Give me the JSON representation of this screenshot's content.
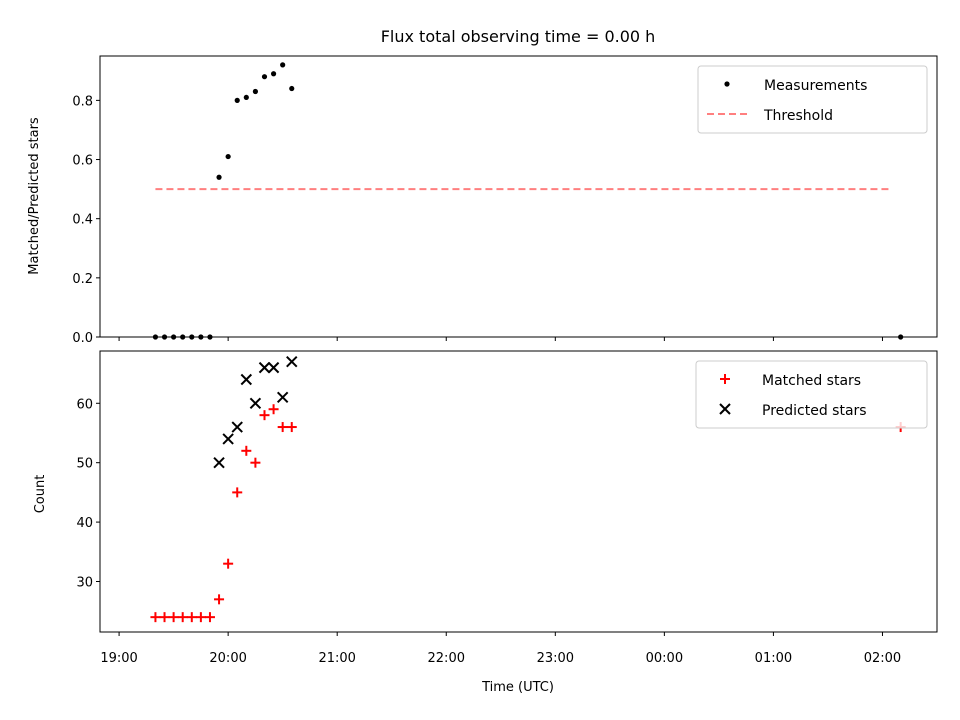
{
  "title": "Flux total observing time = 0.00 h",
  "colors": {
    "measurement": "#000000",
    "threshold": "#ff7f7f",
    "matched": "#ff0000",
    "predicted": "#000000"
  },
  "chart_data": [
    {
      "type": "scatter",
      "ylabel": "Matched/Predicted stars",
      "ylim": [
        0.0,
        0.95
      ],
      "yticks": [
        0.0,
        0.2,
        0.4,
        0.6,
        0.8
      ],
      "ytick_labels": [
        "0.0",
        "0.2",
        "0.4",
        "0.6",
        "0.8"
      ],
      "legend_position": "top-right",
      "series": [
        {
          "name": "Measurements",
          "kind": "dot",
          "x": [
            "19:20",
            "19:25",
            "19:30",
            "19:35",
            "19:40",
            "19:45",
            "19:50",
            "19:55",
            "20:00",
            "20:05",
            "20:10",
            "20:15",
            "20:20",
            "20:25",
            "20:30",
            "20:35",
            "02:10"
          ],
          "y": [
            0.0,
            0.0,
            0.0,
            0.0,
            0.0,
            0.0,
            0.0,
            0.54,
            0.61,
            0.8,
            0.81,
            0.83,
            0.88,
            0.89,
            0.92,
            0.84,
            0.0
          ]
        },
        {
          "name": "Threshold",
          "kind": "dashed-line",
          "x": [
            "19:20",
            "02:05"
          ],
          "y": [
            0.5,
            0.5
          ]
        }
      ]
    },
    {
      "type": "scatter",
      "ylabel": "Count",
      "xlabel": "Time (UTC)",
      "ylim": [
        21.5,
        68.8
      ],
      "yticks": [
        30,
        40,
        50,
        60
      ],
      "ytick_labels": [
        "30",
        "40",
        "50",
        "60"
      ],
      "xticks": [
        "19:00",
        "20:00",
        "21:00",
        "22:00",
        "23:00",
        "00:00",
        "01:00",
        "02:00"
      ],
      "legend_position": "top-right",
      "series": [
        {
          "name": "Matched stars",
          "kind": "plus",
          "x": [
            "19:20",
            "19:25",
            "19:30",
            "19:35",
            "19:40",
            "19:45",
            "19:50",
            "19:55",
            "20:00",
            "20:05",
            "20:10",
            "20:15",
            "20:20",
            "20:25",
            "20:30",
            "20:35",
            "02:10"
          ],
          "y": [
            24,
            24,
            24,
            24,
            24,
            24,
            24,
            27,
            33,
            45,
            52,
            50,
            58,
            59,
            56,
            56,
            56
          ]
        },
        {
          "name": "Predicted stars",
          "kind": "cross",
          "x": [
            "19:55",
            "20:00",
            "20:05",
            "20:10",
            "20:15",
            "20:20",
            "20:25",
            "20:30",
            "20:35"
          ],
          "y": [
            50,
            54,
            56,
            64,
            60,
            66,
            66,
            61,
            67
          ]
        }
      ]
    }
  ]
}
